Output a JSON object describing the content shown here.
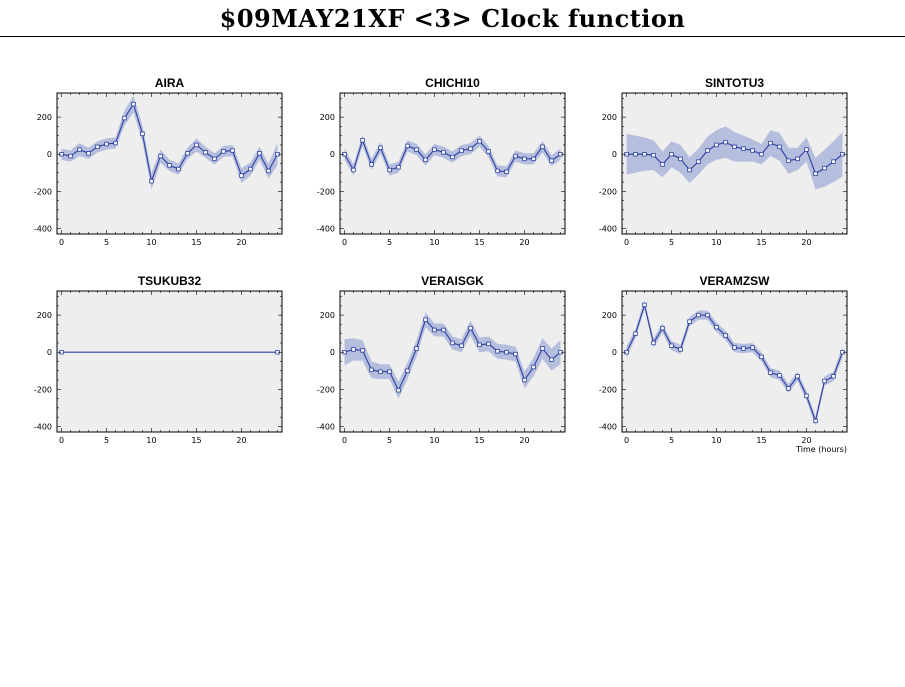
{
  "header": {
    "title": "$09MAY21XF <3>  Clock function"
  },
  "chart_data": [
    {
      "type": "line",
      "title": "AIRA",
      "xlabel": "",
      "ylabel": "",
      "xlim": [
        -0.5,
        24.5
      ],
      "ylim": [
        -430,
        330
      ],
      "xticks": [
        0,
        5,
        10,
        15,
        20
      ],
      "yticks": [
        -400,
        -200,
        0,
        200
      ],
      "band_color": "#b6bedd",
      "line_color": "#2a3fa0",
      "background": "#eeeeee",
      "series": [
        {
          "x": [
            0,
            1,
            2,
            3,
            4,
            5,
            6,
            7,
            8,
            9,
            10,
            11,
            12,
            13,
            14,
            15,
            16,
            17,
            18,
            19,
            20,
            21,
            22,
            23,
            24
          ],
          "y": [
            0,
            -10,
            25,
            5,
            40,
            55,
            60,
            195,
            270,
            110,
            -145,
            -10,
            -60,
            -80,
            5,
            50,
            10,
            -25,
            15,
            20,
            -115,
            -80,
            5,
            -90,
            0
          ],
          "err": [
            30,
            30,
            35,
            30,
            30,
            30,
            30,
            40,
            45,
            45,
            45,
            35,
            30,
            30,
            30,
            35,
            30,
            30,
            30,
            30,
            40,
            35,
            35,
            40,
            60
          ]
        }
      ]
    },
    {
      "type": "line",
      "title": "CHICHI10",
      "xlabel": "",
      "ylabel": "",
      "xlim": [
        -0.5,
        24.5
      ],
      "ylim": [
        -430,
        330
      ],
      "xticks": [
        0,
        5,
        10,
        15,
        20
      ],
      "yticks": [
        -400,
        -200,
        0,
        200
      ],
      "band_color": "#b6bedd",
      "line_color": "#2a3fa0",
      "background": "#eeeeee",
      "series": [
        {
          "x": [
            0,
            1,
            2,
            3,
            4,
            5,
            6,
            7,
            8,
            9,
            10,
            11,
            12,
            13,
            14,
            15,
            16,
            17,
            18,
            19,
            20,
            21,
            22,
            23,
            24
          ],
          "y": [
            0,
            -85,
            75,
            -55,
            35,
            -85,
            -70,
            45,
            25,
            -30,
            25,
            10,
            -15,
            20,
            30,
            70,
            15,
            -90,
            -95,
            -10,
            -25,
            -25,
            40,
            -35,
            0
          ],
          "err": [
            30,
            30,
            30,
            30,
            30,
            30,
            30,
            30,
            30,
            30,
            30,
            30,
            30,
            30,
            30,
            30,
            30,
            30,
            30,
            30,
            30,
            30,
            30,
            30,
            30
          ]
        }
      ]
    },
    {
      "type": "line",
      "title": "SINTOTU3",
      "xlabel": "",
      "ylabel": "",
      "xlim": [
        -0.5,
        24.5
      ],
      "ylim": [
        -430,
        330
      ],
      "xticks": [
        0,
        5,
        10,
        15,
        20
      ],
      "yticks": [
        -400,
        -200,
        0,
        200
      ],
      "band_color": "#b6bedd",
      "line_color": "#2a3fa0",
      "background": "#eeeeee",
      "series": [
        {
          "x": [
            0,
            1,
            2,
            3,
            4,
            5,
            6,
            7,
            8,
            9,
            10,
            11,
            12,
            13,
            14,
            15,
            16,
            17,
            18,
            19,
            20,
            21,
            22,
            23,
            24
          ],
          "y": [
            0,
            0,
            0,
            -5,
            -55,
            0,
            -25,
            -85,
            -40,
            20,
            50,
            65,
            40,
            30,
            20,
            0,
            60,
            40,
            -35,
            -25,
            25,
            -105,
            -75,
            -40,
            0
          ],
          "err": [
            110,
            100,
            90,
            80,
            70,
            70,
            75,
            70,
            70,
            75,
            80,
            85,
            80,
            70,
            60,
            55,
            70,
            75,
            70,
            60,
            65,
            85,
            100,
            110,
            120
          ]
        }
      ]
    },
    {
      "type": "line",
      "title": "TSUKUB32",
      "xlabel": "",
      "ylabel": "",
      "xlim": [
        -0.5,
        24.5
      ],
      "ylim": [
        -430,
        330
      ],
      "xticks": [
        0,
        5,
        10,
        15,
        20
      ],
      "yticks": [
        -400,
        -200,
        0,
        200
      ],
      "band_color": "#b6bedd",
      "line_color": "#2a3fa0",
      "background": "#eeeeee",
      "series": [
        {
          "x": [
            0,
            24
          ],
          "y": [
            0,
            0
          ],
          "err": [
            0,
            0
          ]
        }
      ]
    },
    {
      "type": "line",
      "title": "VERAISGK",
      "xlabel": "",
      "ylabel": "",
      "xlim": [
        -0.5,
        24.5
      ],
      "ylim": [
        -430,
        330
      ],
      "xticks": [
        0,
        5,
        10,
        15,
        20
      ],
      "yticks": [
        -400,
        -200,
        0,
        200
      ],
      "band_color": "#b6bedd",
      "line_color": "#2a3fa0",
      "background": "#eeeeee",
      "series": [
        {
          "x": [
            0,
            1,
            2,
            3,
            4,
            5,
            6,
            7,
            8,
            9,
            10,
            11,
            12,
            13,
            14,
            15,
            16,
            17,
            18,
            19,
            20,
            21,
            22,
            23,
            24
          ],
          "y": [
            0,
            15,
            10,
            -95,
            -105,
            -105,
            -205,
            -100,
            20,
            175,
            120,
            120,
            50,
            35,
            130,
            40,
            45,
            5,
            0,
            -10,
            -150,
            -80,
            20,
            -40,
            0
          ],
          "err": [
            70,
            60,
            55,
            45,
            40,
            40,
            45,
            45,
            45,
            40,
            35,
            35,
            35,
            35,
            40,
            40,
            40,
            40,
            40,
            40,
            45,
            50,
            55,
            60,
            65
          ]
        }
      ]
    },
    {
      "type": "line",
      "title": "VERAMZSW",
      "xlabel": "Time (hours)",
      "ylabel": "",
      "xlim": [
        -0.5,
        24.5
      ],
      "ylim": [
        -430,
        330
      ],
      "xticks": [
        0,
        5,
        10,
        15,
        20
      ],
      "yticks": [
        -400,
        -200,
        0,
        200
      ],
      "band_color": "#b6bedd",
      "line_color": "#2a3fa0",
      "background": "#eeeeee",
      "series": [
        {
          "x": [
            0,
            1,
            2,
            3,
            4,
            5,
            6,
            7,
            8,
            9,
            10,
            11,
            12,
            13,
            14,
            15,
            16,
            17,
            18,
            19,
            20,
            21,
            22,
            23,
            24
          ],
          "y": [
            0,
            100,
            255,
            50,
            130,
            35,
            15,
            165,
            200,
            200,
            135,
            90,
            25,
            20,
            25,
            -25,
            -110,
            -125,
            -195,
            -130,
            -235,
            -370,
            -155,
            -130,
            0
          ],
          "err": [
            30,
            25,
            25,
            25,
            25,
            25,
            25,
            25,
            25,
            25,
            25,
            25,
            25,
            25,
            25,
            25,
            25,
            25,
            25,
            25,
            25,
            25,
            25,
            25,
            30
          ]
        }
      ]
    }
  ]
}
